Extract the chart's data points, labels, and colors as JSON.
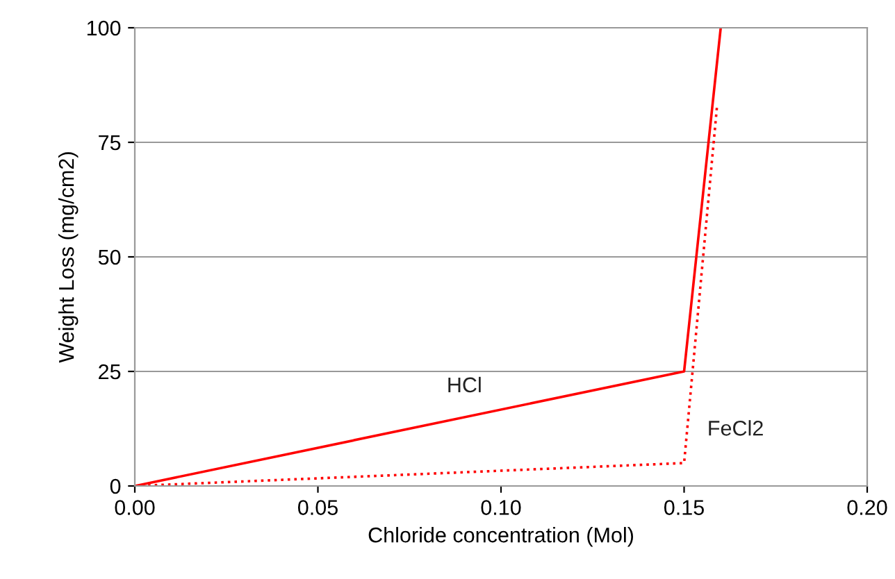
{
  "chart_data": {
    "type": "line",
    "xlabel": "Chloride concentration (Mol)",
    "ylabel": "Weight Loss (mg/cm2)",
    "xlim": [
      0,
      0.2
    ],
    "xticks": [
      {
        "value": 0,
        "label": "0.00"
      },
      {
        "value": 0.05,
        "label": "0.05"
      },
      {
        "value": 0.1,
        "label": "0.10"
      },
      {
        "value": 0.15,
        "label": "0.15"
      },
      {
        "value": 0.2,
        "label": "0.20"
      }
    ],
    "ylim": [
      0,
      100
    ],
    "yticks": [
      0,
      25,
      50,
      75,
      100
    ],
    "grid": "y",
    "legend": false,
    "marker": "none",
    "series": [
      {
        "name": "HCl",
        "color": "#ff0000",
        "line_style": "solid",
        "x": [
          0,
          0.15,
          0.16
        ],
        "values": [
          0,
          25,
          100
        ]
      },
      {
        "name": "FeCl2",
        "color": "#ff0000",
        "line_style": "dotted",
        "x": [
          0,
          0.15,
          0.159
        ],
        "values": [
          0,
          5,
          83
        ]
      }
    ]
  }
}
